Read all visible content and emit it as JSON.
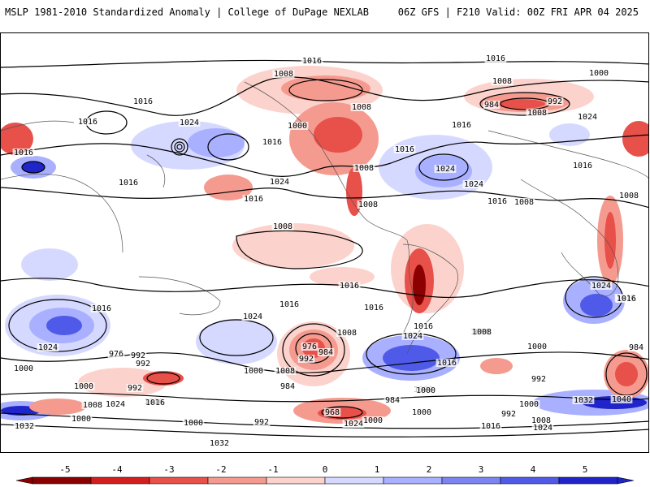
{
  "header": {
    "left_title": "MSLP 1981-2010 Standardized Anomaly | College of DuPage NEXLAB",
    "right_title": "06Z GFS | F210 Valid: 00Z FRI APR 04 2025"
  },
  "colorbar": {
    "tick_labels": [
      "-5",
      "-4",
      "-3",
      "-2",
      "-1",
      "0",
      "1",
      "2",
      "3",
      "4",
      "5"
    ],
    "colors": {
      "neg5": "#8b0000",
      "neg4": "#d21e1e",
      "neg3": "#e8504a",
      "neg2": "#f59a8f",
      "neg1": "#fcd3cc",
      "zero": "#ffffff",
      "pos1": "#d6d9ff",
      "pos2": "#a9b0ff",
      "pos3": "#7c84f2",
      "pos4": "#4f5ae8",
      "pos5": "#1f25c8"
    }
  },
  "isobar_labels": [
    "1016",
    "1016",
    "1008",
    "1008",
    "1000",
    "1008",
    "984",
    "992",
    "1008",
    "1024",
    "1016",
    "1016",
    "1024",
    "1016",
    "1016",
    "1000",
    "1016",
    "1016",
    "1008",
    "1016",
    "1024",
    "1016",
    "1024",
    "1024",
    "1016",
    "1008",
    "1016",
    "1008",
    "1008",
    "1008",
    "1016",
    "1016",
    "1024",
    "1024",
    "1016",
    "1016",
    "1016",
    "1024",
    "1024",
    "1008",
    "1016",
    "1008",
    "1000",
    "976",
    "992",
    "984",
    "1000",
    "992",
    "976",
    "992",
    "1000",
    "1008",
    "1016",
    "1024",
    "1008",
    "1000",
    "1032",
    "1000",
    "1032",
    "992",
    "1000",
    "984",
    "968",
    "1000",
    "1024",
    "984",
    "992",
    "1000",
    "1016",
    "1008",
    "1000",
    "992",
    "1000",
    "1032",
    "1040",
    "992",
    "1008",
    "1024",
    "1016",
    "984",
    "1000",
    "1016",
    "1016"
  ]
}
